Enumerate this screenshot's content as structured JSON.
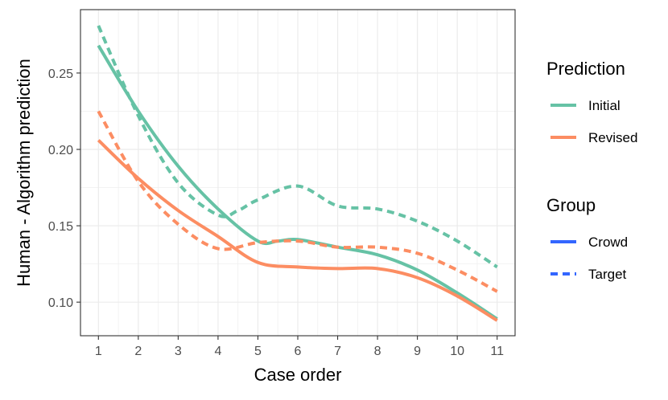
{
  "chart_data": {
    "type": "line",
    "xlabel": "Case order",
    "ylabel": "Human - Algorithm prediction",
    "xlim": [
      0.55,
      11.45
    ],
    "ylim": [
      0.078,
      0.2915
    ],
    "x_ticks": [
      1,
      2,
      3,
      4,
      5,
      6,
      7,
      8,
      9,
      10,
      11
    ],
    "y_ticks": [
      0.1,
      0.15,
      0.2,
      0.25
    ],
    "y_tick_labels": [
      "0.10",
      "0.15",
      "0.20",
      "0.25"
    ],
    "grid": true,
    "legend_placement": "right",
    "legends": [
      {
        "title": "Prediction",
        "entries": [
          {
            "label": "Initial",
            "color": "#66c2a5",
            "style": "solid"
          },
          {
            "label": "Revised",
            "color": "#fc8d62",
            "style": "solid"
          }
        ]
      },
      {
        "title": "Group",
        "entries": [
          {
            "label": "Crowd",
            "color": "#3366ff",
            "style": "solid"
          },
          {
            "label": "Target",
            "color": "#3366ff",
            "style": "dashed"
          }
        ]
      }
    ],
    "series": [
      {
        "prediction": "Initial",
        "group": "Crowd",
        "color": "#66c2a5",
        "style": "solid",
        "x": [
          1,
          2,
          3,
          4,
          5,
          5.5,
          6,
          7,
          8,
          9,
          10,
          11
        ],
        "y": [
          0.268,
          0.225,
          0.189,
          0.161,
          0.14,
          0.14,
          0.141,
          0.136,
          0.131,
          0.121,
          0.106,
          0.089
        ]
      },
      {
        "prediction": "Initial",
        "group": "Target",
        "color": "#66c2a5",
        "style": "dashed",
        "x": [
          1,
          2,
          3,
          4,
          4.5,
          5,
          6,
          7,
          8,
          9,
          10,
          11
        ],
        "y": [
          0.281,
          0.222,
          0.178,
          0.157,
          0.16,
          0.167,
          0.176,
          0.163,
          0.161,
          0.153,
          0.14,
          0.123
        ]
      },
      {
        "prediction": "Revised",
        "group": "Crowd",
        "color": "#fc8d62",
        "style": "solid",
        "x": [
          1,
          2,
          3,
          4,
          5,
          6,
          7,
          8,
          9,
          10,
          11
        ],
        "y": [
          0.206,
          0.181,
          0.16,
          0.143,
          0.126,
          0.123,
          0.122,
          0.122,
          0.116,
          0.104,
          0.088
        ]
      },
      {
        "prediction": "Revised",
        "group": "Target",
        "color": "#fc8d62",
        "style": "dashed",
        "x": [
          1,
          2,
          3,
          4,
          5,
          6,
          7,
          8,
          9,
          10,
          11
        ],
        "y": [
          0.225,
          0.179,
          0.151,
          0.135,
          0.139,
          0.14,
          0.136,
          0.136,
          0.132,
          0.121,
          0.107
        ]
      }
    ]
  }
}
